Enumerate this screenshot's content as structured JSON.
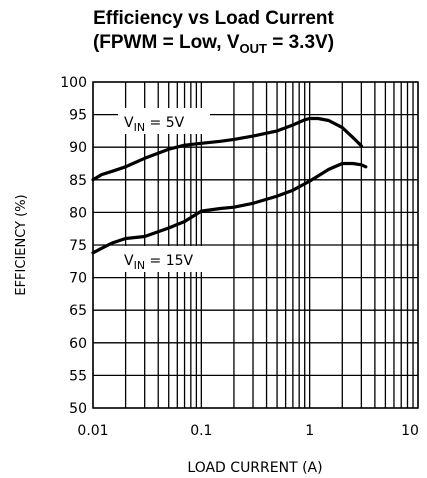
{
  "chart_data": {
    "type": "line",
    "title": "Efficiency vs Load Current",
    "subtitle": {
      "prefix": "(FPWM = Low, V",
      "sub": "OUT",
      "suffix": " = 3.3V)"
    },
    "xlabel": "LOAD CURRENT (A)",
    "ylabel": "EFFICIENCY (%)",
    "x_scale": "log",
    "xlim": [
      0.01,
      10
    ],
    "ylim": [
      50,
      100
    ],
    "x_ticks": [
      "0.01",
      "0.1",
      "1",
      "10"
    ],
    "y_ticks": [
      "50",
      "55",
      "60",
      "65",
      "70",
      "75",
      "80",
      "85",
      "90",
      "95",
      "100"
    ],
    "grid": true,
    "series": [
      {
        "name": "VIN = 5V",
        "label": {
          "prefix": "V",
          "sub": "IN",
          "suffix": " = 5V"
        },
        "x": [
          0.01,
          0.012,
          0.015,
          0.02,
          0.03,
          0.05,
          0.07,
          0.1,
          0.15,
          0.2,
          0.3,
          0.5,
          0.7,
          0.9,
          1.0,
          1.2,
          1.5,
          2.0,
          2.5,
          3.0
        ],
        "y": [
          85.0,
          85.8,
          86.3,
          87.0,
          88.3,
          89.7,
          90.3,
          90.6,
          90.9,
          91.2,
          91.7,
          92.5,
          93.4,
          94.2,
          94.4,
          94.4,
          94.1,
          93.0,
          91.5,
          90.2
        ]
      },
      {
        "name": "VIN = 15V",
        "label": {
          "prefix": "V",
          "sub": "IN",
          "suffix": " = 15V"
        },
        "x": [
          0.01,
          0.012,
          0.015,
          0.02,
          0.03,
          0.05,
          0.07,
          0.1,
          0.15,
          0.2,
          0.3,
          0.5,
          0.7,
          1.0,
          1.5,
          2.0,
          2.5,
          3.0,
          3.3
        ],
        "y": [
          73.8,
          74.5,
          75.3,
          76.0,
          76.3,
          77.6,
          78.6,
          80.2,
          80.6,
          80.8,
          81.4,
          82.5,
          83.4,
          84.8,
          86.6,
          87.5,
          87.5,
          87.3,
          87.0
        ]
      }
    ]
  }
}
